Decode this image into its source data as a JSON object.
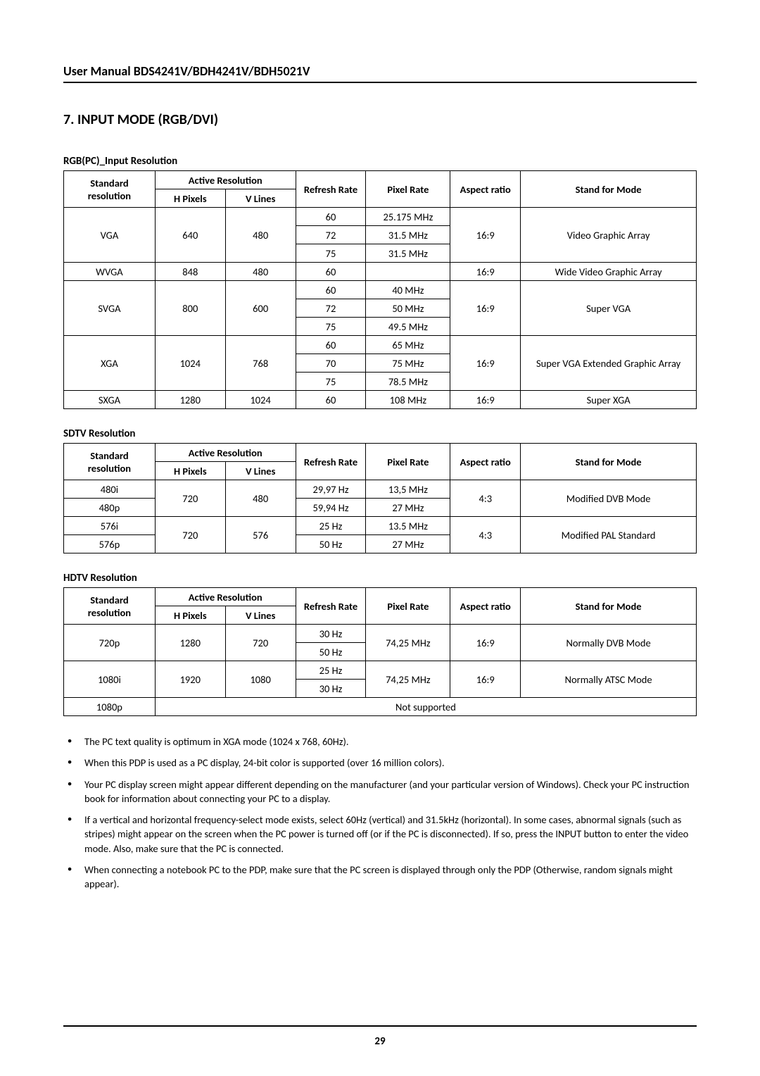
{
  "header": {
    "title": "User Manual BDS4241V/BDH4241V/BDH5021V"
  },
  "section": {
    "title": "7.   INPUT MODE (RGB/DVI)"
  },
  "headers": {
    "std": "Standard resolution",
    "active": "Active Resolution",
    "hpx": "H Pixels",
    "vln": "V Lines",
    "refresh": "Refresh Rate",
    "pixel": "Pixel Rate",
    "aspect": "Aspect ratio",
    "mode": "Stand for Mode"
  },
  "rgb": {
    "title": "RGB(PC)_Input Resolution",
    "r0": {
      "std": "VGA",
      "hp": "640",
      "vl": "480",
      "rr": "60",
      "pr": "25.175 MHz",
      "ar": "16:9",
      "md": "Video Graphic Array"
    },
    "r1": {
      "rr": "72",
      "pr": "31.5 MHz"
    },
    "r2": {
      "rr": "75",
      "pr": "31.5 MHz"
    },
    "r3": {
      "std": "WVGA",
      "hp": "848",
      "vl": "480",
      "rr": "60",
      "pr": "",
      "ar": "16:9",
      "md": "Wide Video Graphic Array"
    },
    "r4": {
      "std": "SVGA",
      "hp": "800",
      "vl": "600",
      "rr": "60",
      "pr": "40 MHz",
      "ar": "16:9",
      "md": "Super VGA"
    },
    "r5": {
      "rr": "72",
      "pr": "50 MHz"
    },
    "r6": {
      "rr": "75",
      "pr": "49.5 MHz"
    },
    "r7": {
      "std": "XGA",
      "hp": "1024",
      "vl": "768",
      "rr": "60",
      "pr": "65 MHz",
      "ar": "16:9",
      "md": "Super VGA Extended Graphic Array"
    },
    "r8": {
      "rr": "70",
      "pr": "75 MHz"
    },
    "r9": {
      "rr": "75",
      "pr": "78.5 MHz"
    },
    "r10": {
      "std": "SXGA",
      "hp": "1280",
      "vl": "1024",
      "rr": "60",
      "pr": "108 MHz",
      "ar": "16:9",
      "md": "Super XGA"
    }
  },
  "sdtv": {
    "title": "SDTV Resolution",
    "r0": {
      "std": "480i",
      "hp": "720",
      "vl": "480",
      "rr": "29,97 Hz",
      "pr": "13,5 MHz",
      "ar": "4:3",
      "md": "Modified DVB Mode"
    },
    "r1": {
      "std": "480p",
      "rr": "59,94 Hz",
      "pr": "27 MHz"
    },
    "r2": {
      "std": "576i",
      "hp": "720",
      "vl": "576",
      "rr": "25 Hz",
      "pr": "13.5 MHz",
      "ar": "4:3",
      "md": "Modified PAL Standard"
    },
    "r3": {
      "std": "576p",
      "rr": "50 Hz",
      "pr": "27 MHz"
    }
  },
  "hdtv": {
    "title": "HDTV Resolution",
    "r0": {
      "std": "720p",
      "hp": "1280",
      "vl": "720",
      "rr": "30 Hz",
      "pr": "74,25 MHz",
      "ar": "16:9",
      "md": "Normally DVB Mode"
    },
    "r1": {
      "rr": "50 Hz"
    },
    "r2": {
      "std": "1080i",
      "hp": "1920",
      "vl": "1080",
      "rr": "25 Hz",
      "pr": "74,25 MHz",
      "ar": "16:9",
      "md": "Normally ATSC Mode"
    },
    "r3": {
      "rr": "30 Hz"
    },
    "r4": {
      "std": "1080p",
      "ns": "Not supported"
    }
  },
  "notes": {
    "n0": "The PC text quality is optimum in XGA mode (1024 x 768, 60Hz).",
    "n1": "When this PDP is used as a PC display, 24-bit color is supported (over 16 million colors).",
    "n2": "Your PC display screen might appear different depending on the manufacturer (and your particular version of Windows). Check your PC instruction book for information about connecting your PC to a display.",
    "n3": "If a vertical and horizontal frequency-select mode exists, select 60Hz (vertical) and 31.5kHz (horizontal). In some cases, abnormal signals (such as stripes) might appear on the screen when the PC power is turned off (or if the PC is disconnected). If so, press the INPUT button to enter the video mode. Also, make sure that the PC is connected.",
    "n4": "When connecting a notebook PC to the PDP, make sure that the PC screen is displayed through only  the PDP (Otherwise, random signals might appear)."
  },
  "page": {
    "num": "29"
  }
}
